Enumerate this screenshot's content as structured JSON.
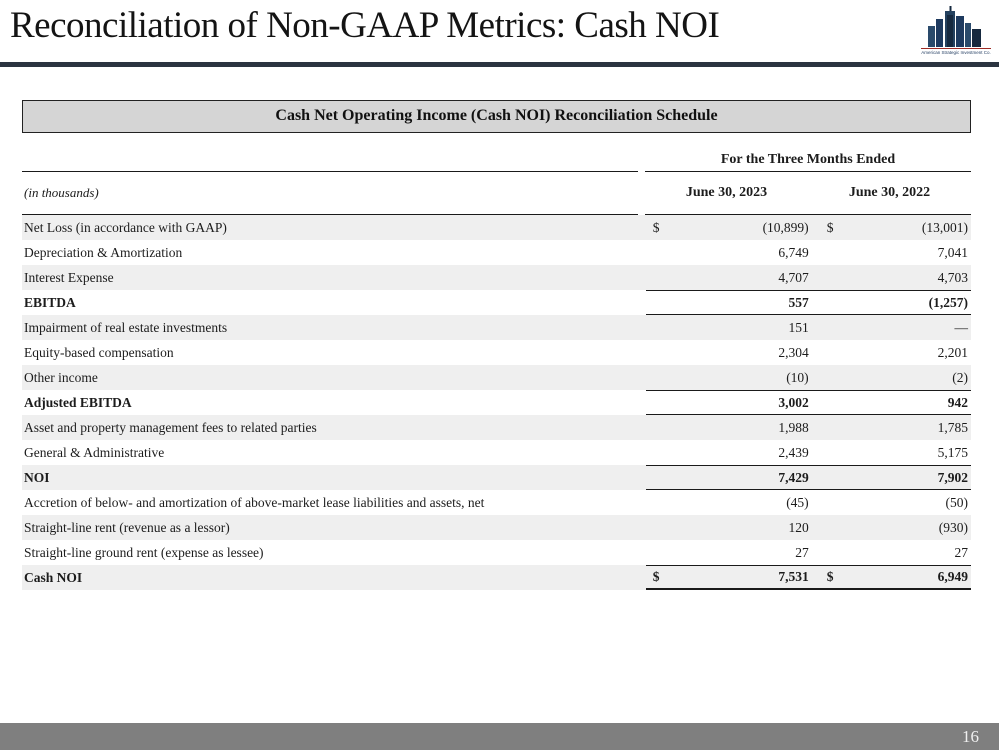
{
  "page": {
    "title": "Reconciliation of Non-GAAP Metrics: Cash NOI",
    "page_number": "16"
  },
  "logo": {
    "icon": "city-skyline-icon",
    "caption": "American Strategic Investment Co."
  },
  "table": {
    "title": "Cash Net Operating Income (Cash NOI) Reconciliation Schedule",
    "units_label": "(in thousands)",
    "period_header": "For the Three Months Ended",
    "columns": [
      "June 30, 2023",
      "June 30, 2022"
    ],
    "rows": [
      {
        "label": "Net Loss (in accordance with GAAP)",
        "dollar": true,
        "v2023": "(10,899)",
        "v2022": "(13,001)",
        "total": false
      },
      {
        "label": "Depreciation & Amortization",
        "v2023": "6,749",
        "v2022": "7,041",
        "total": false
      },
      {
        "label": "Interest Expense",
        "v2023": "4,707",
        "v2022": "4,703",
        "total": false
      },
      {
        "label": "EBITDA",
        "v2023": "557",
        "v2022": "(1,257)",
        "total": true
      },
      {
        "label": "Impairment of real estate investments",
        "v2023": "151",
        "v2022": "—",
        "total": false
      },
      {
        "label": "Equity-based compensation",
        "v2023": "2,304",
        "v2022": "2,201",
        "total": false
      },
      {
        "label": "Other income",
        "v2023": "(10)",
        "v2022": "(2)",
        "total": false
      },
      {
        "label": "Adjusted EBITDA",
        "v2023": "3,002",
        "v2022": "942",
        "total": true
      },
      {
        "label": "Asset and property management fees to related parties",
        "v2023": "1,988",
        "v2022": "1,785",
        "total": false
      },
      {
        "label": "General & Administrative",
        "v2023": "2,439",
        "v2022": "5,175",
        "total": false
      },
      {
        "label": "NOI",
        "v2023": "7,429",
        "v2022": "7,902",
        "total": true
      },
      {
        "label": "Accretion of below- and amortization of above-market lease liabilities and assets, net",
        "v2023": "(45)",
        "v2022": "(50)",
        "total": false
      },
      {
        "label": "Straight-line rent (revenue as a lessor)",
        "v2023": "120",
        "v2022": "(930)",
        "total": false
      },
      {
        "label": "Straight-line ground rent (expense as lessee)",
        "v2023": "27",
        "v2022": "27",
        "total": false
      },
      {
        "label": "Cash NOI",
        "dollar": true,
        "v2023": "7,531",
        "v2022": "6,949",
        "total": true,
        "final": true
      }
    ]
  },
  "colors": {
    "accent_rule": "#2b3440",
    "table_title_bg": "#d5d5d5",
    "stripe": "#efefef",
    "footer_bg": "#7f7f7f",
    "logo_navy": "#1e3a5f",
    "logo_red": "#9e2b25"
  }
}
